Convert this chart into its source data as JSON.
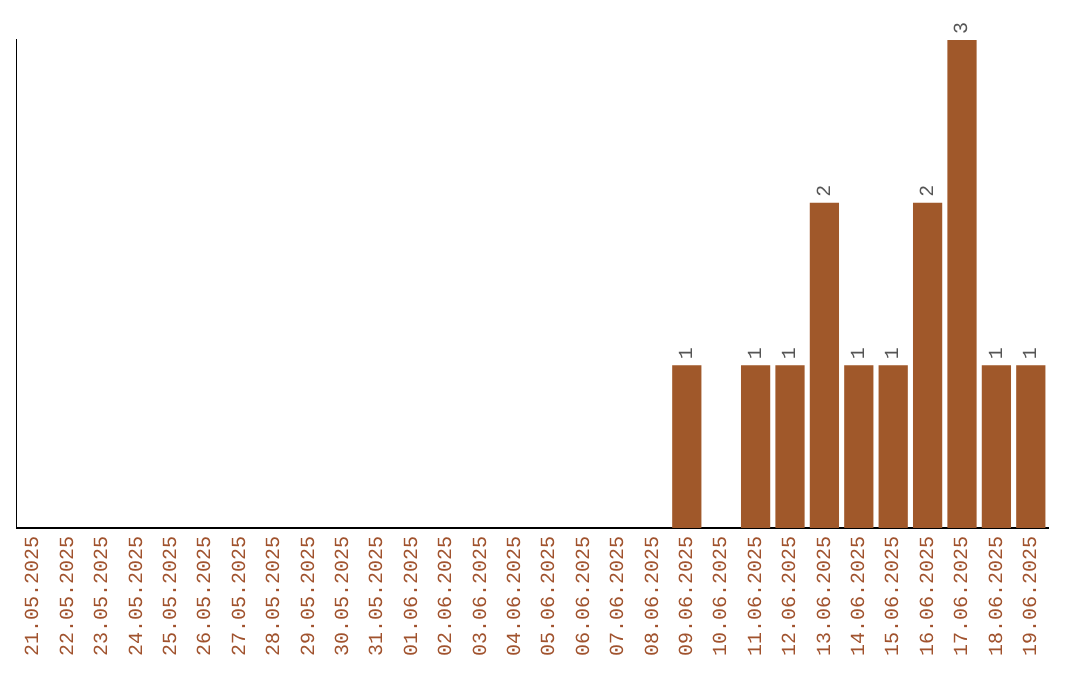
{
  "chart_data": {
    "type": "bar",
    "categories": [
      "21.05.2025",
      "22.05.2025",
      "23.05.2025",
      "24.05.2025",
      "25.05.2025",
      "26.05.2025",
      "27.05.2025",
      "28.05.2025",
      "29.05.2025",
      "30.05.2025",
      "31.05.2025",
      "01.06.2025",
      "02.06.2025",
      "03.06.2025",
      "04.06.2025",
      "05.06.2025",
      "06.06.2025",
      "07.06.2025",
      "08.06.2025",
      "09.06.2025",
      "10.06.2025",
      "11.06.2025",
      "12.06.2025",
      "13.06.2025",
      "14.06.2025",
      "15.06.2025",
      "16.06.2025",
      "17.06.2025",
      "18.06.2025",
      "19.06.2025"
    ],
    "values": [
      null,
      null,
      null,
      null,
      null,
      null,
      null,
      null,
      null,
      null,
      null,
      null,
      null,
      null,
      null,
      null,
      null,
      null,
      null,
      1,
      null,
      1,
      1,
      2,
      1,
      1,
      2,
      3,
      1,
      1
    ],
    "data_labels": true,
    "color": "#a0582a",
    "grid": false,
    "legend": false,
    "tick_labels": "x"
  }
}
